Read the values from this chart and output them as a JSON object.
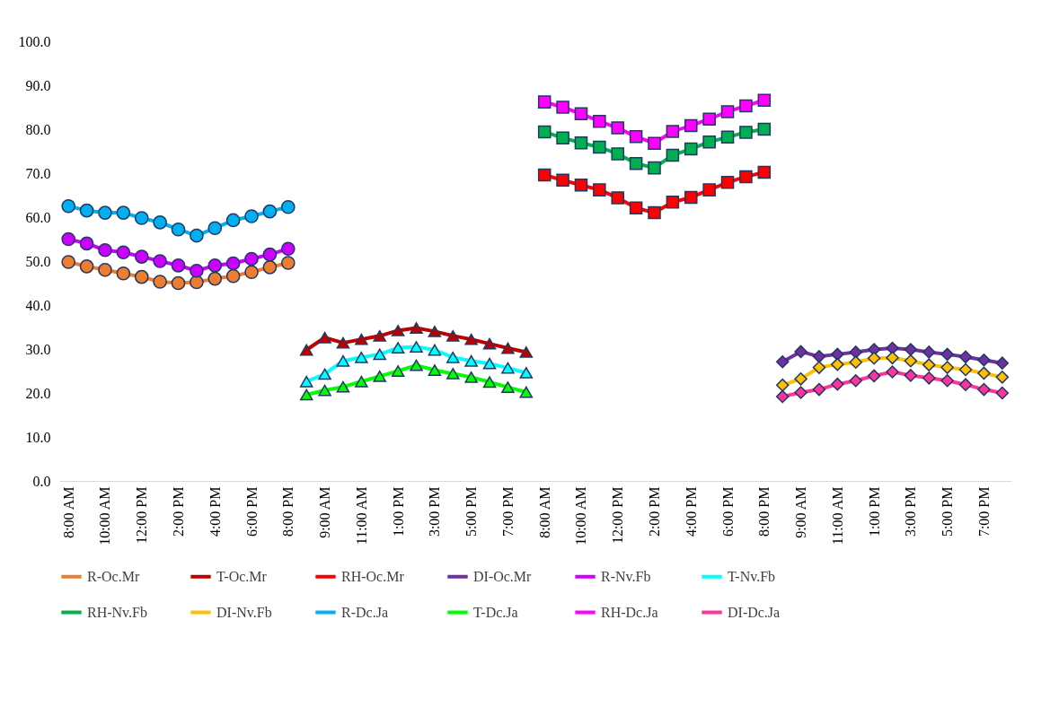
{
  "chart_data": {
    "type": "line",
    "categories": [
      "8:00 AM",
      null,
      "10:00 AM",
      null,
      "12:00 PM",
      null,
      "2:00 PM",
      null,
      "4:00 PM",
      null,
      "6:00 PM",
      null,
      "8:00 PM",
      null,
      "9:00 AM",
      null,
      "11:00 AM",
      null,
      "1:00 PM",
      null,
      "3:00 PM",
      null,
      "5:00 PM",
      null,
      "7:00 PM",
      null,
      "8:00 AM",
      null,
      "10:00 AM",
      null,
      "12:00 PM",
      null,
      "2:00 PM",
      null,
      "4:00 PM",
      null,
      "6:00 PM",
      null,
      "8:00 PM",
      null,
      "9:00 AM",
      null,
      "11:00 AM",
      null,
      "1:00 PM",
      null,
      "3:00 PM",
      null,
      "5:00 PM",
      null,
      "7:00 PM",
      null
    ],
    "ylim": [
      0,
      100
    ],
    "yticks": [
      {
        "value": 0,
        "label": "0.0"
      },
      {
        "value": 10,
        "label": "10.0"
      },
      {
        "value": 20,
        "label": "20.0"
      },
      {
        "value": 30,
        "label": "30.0"
      },
      {
        "value": 40,
        "label": "40.0"
      },
      {
        "value": 50,
        "label": "50.0"
      },
      {
        "value": 60,
        "label": "60.0"
      },
      {
        "value": 70,
        "label": "70.0"
      },
      {
        "value": 80,
        "label": "80.0"
      },
      {
        "value": 90,
        "label": "90.0"
      },
      {
        "value": 100,
        "label": "100.0"
      }
    ],
    "grid": false,
    "legend": "bottom",
    "series": [
      {
        "name": "R-Oc.Mr",
        "color": "#ed7d31",
        "marker": "circle",
        "values": [
          49.8,
          48.8,
          48.0,
          47.2,
          46.4,
          45.3,
          45.0,
          45.2,
          46.0,
          46.6,
          47.5,
          48.6,
          49.6,
          null,
          null,
          null,
          null,
          null,
          null,
          null,
          null,
          null,
          null,
          null,
          null,
          null,
          null,
          null,
          null,
          null,
          null,
          null,
          null,
          null,
          null,
          null,
          null,
          null,
          null,
          null,
          null,
          null,
          null,
          null,
          null,
          null,
          null,
          null,
          null,
          null,
          null,
          null
        ]
      },
      {
        "name": "T-Oc.Mr",
        "color": "#c00000",
        "marker": "triangle",
        "values": [
          null,
          null,
          null,
          null,
          null,
          null,
          null,
          null,
          null,
          null,
          null,
          null,
          null,
          29.8,
          32.6,
          31.4,
          32.2,
          33.0,
          34.2,
          34.8,
          34.0,
          33.0,
          32.2,
          31.2,
          30.2,
          29.3,
          null,
          null,
          null,
          null,
          null,
          null,
          null,
          null,
          null,
          null,
          null,
          null,
          null,
          null,
          null,
          null,
          null,
          null,
          null,
          null,
          null,
          null,
          null,
          null,
          null,
          null
        ]
      },
      {
        "name": "RH-Oc.Mr",
        "color": "#ff0000",
        "marker": "square",
        "values": [
          null,
          null,
          null,
          null,
          null,
          null,
          null,
          null,
          null,
          null,
          null,
          null,
          null,
          null,
          null,
          null,
          null,
          null,
          null,
          null,
          null,
          null,
          null,
          null,
          null,
          null,
          69.6,
          68.4,
          67.3,
          66.2,
          64.4,
          62.1,
          61.0,
          63.4,
          64.5,
          66.2,
          67.9,
          69.2,
          70.2,
          null,
          null,
          null,
          null,
          null,
          null,
          null,
          null,
          null,
          null,
          null,
          null,
          null
        ]
      },
      {
        "name": "DI-Oc.Mr",
        "color": "#7030a0",
        "marker": "diamond",
        "values": [
          null,
          null,
          null,
          null,
          null,
          null,
          null,
          null,
          null,
          null,
          null,
          null,
          null,
          null,
          null,
          null,
          null,
          null,
          null,
          null,
          null,
          null,
          null,
          null,
          null,
          null,
          null,
          null,
          null,
          null,
          null,
          null,
          null,
          null,
          null,
          null,
          null,
          null,
          null,
          27.1,
          29.4,
          28.3,
          28.8,
          29.3,
          29.9,
          30.2,
          29.9,
          29.3,
          28.8,
          28.2,
          27.5,
          26.8
        ]
      },
      {
        "name": "R-Nv.Fb",
        "color": "#cc00ff",
        "marker": "circle",
        "values": [
          55.0,
          54.0,
          52.5,
          52.0,
          51.0,
          50.0,
          49.0,
          47.8,
          49.0,
          49.5,
          50.5,
          51.5,
          52.8,
          null,
          null,
          null,
          null,
          null,
          null,
          null,
          null,
          null,
          null,
          null,
          null,
          null,
          null,
          null,
          null,
          null,
          null,
          null,
          null,
          null,
          null,
          null,
          null,
          null,
          null,
          null,
          null,
          null,
          null,
          null,
          null,
          null,
          null,
          null,
          null,
          null,
          null,
          null
        ]
      },
      {
        "name": "T-Nv.Fb",
        "color": "#00ffff",
        "marker": "triangle",
        "values": [
          null,
          null,
          null,
          null,
          null,
          null,
          null,
          null,
          null,
          null,
          null,
          null,
          null,
          22.6,
          24.3,
          27.3,
          28.1,
          28.8,
          30.3,
          30.5,
          29.8,
          28.1,
          27.3,
          26.7,
          25.7,
          24.6,
          null,
          null,
          null,
          null,
          null,
          null,
          null,
          null,
          null,
          null,
          null,
          null,
          null,
          null,
          null,
          null,
          null,
          null,
          null,
          null,
          null,
          null,
          null,
          null,
          null,
          null
        ]
      },
      {
        "name": "RH-Nv.Fb",
        "color": "#00b050",
        "marker": "square",
        "values": [
          null,
          null,
          null,
          null,
          null,
          null,
          null,
          null,
          null,
          null,
          null,
          null,
          null,
          null,
          null,
          null,
          null,
          null,
          null,
          null,
          null,
          null,
          null,
          null,
          null,
          null,
          79.4,
          78.0,
          76.9,
          75.9,
          74.4,
          72.2,
          71.2,
          74.1,
          75.5,
          77.1,
          78.2,
          79.3,
          80.0,
          null,
          null,
          null,
          null,
          null,
          null,
          null,
          null,
          null,
          null,
          null,
          null,
          null
        ]
      },
      {
        "name": "DI-Nv.Fb",
        "color": "#ffc000",
        "marker": "diamond",
        "values": [
          null,
          null,
          null,
          null,
          null,
          null,
          null,
          null,
          null,
          null,
          null,
          null,
          null,
          null,
          null,
          null,
          null,
          null,
          null,
          null,
          null,
          null,
          null,
          null,
          null,
          null,
          null,
          null,
          null,
          null,
          null,
          null,
          null,
          null,
          null,
          null,
          null,
          null,
          null,
          21.8,
          23.2,
          25.8,
          26.5,
          27.0,
          27.9,
          28.0,
          27.3,
          26.4,
          25.8,
          25.3,
          24.5,
          23.6
        ]
      },
      {
        "name": "R-Dc.Ja",
        "color": "#00b0f0",
        "marker": "circle",
        "values": [
          62.5,
          61.5,
          61.0,
          61.0,
          59.8,
          58.8,
          57.2,
          55.8,
          57.5,
          59.3,
          60.2,
          61.3,
          62.3,
          null,
          null,
          null,
          null,
          null,
          null,
          null,
          null,
          null,
          null,
          null,
          null,
          null,
          null,
          null,
          null,
          null,
          null,
          null,
          null,
          null,
          null,
          null,
          null,
          null,
          null,
          null,
          null,
          null,
          null,
          null,
          null,
          null,
          null,
          null,
          null,
          null,
          null,
          null
        ]
      },
      {
        "name": "T-Dc.Ja",
        "color": "#00ff00",
        "marker": "triangle",
        "values": [
          null,
          null,
          null,
          null,
          null,
          null,
          null,
          null,
          null,
          null,
          null,
          null,
          null,
          19.6,
          20.6,
          21.4,
          22.6,
          23.8,
          25.0,
          26.3,
          25.2,
          24.4,
          23.6,
          22.5,
          21.3,
          20.2,
          null,
          null,
          null,
          null,
          null,
          null,
          null,
          null,
          null,
          null,
          null,
          null,
          null,
          null,
          null,
          null,
          null,
          null,
          null,
          null,
          null,
          null,
          null,
          null,
          null,
          null
        ]
      },
      {
        "name": "RH-Dc.Ja",
        "color": "#ff00ff",
        "marker": "square",
        "values": [
          null,
          null,
          null,
          null,
          null,
          null,
          null,
          null,
          null,
          null,
          null,
          null,
          null,
          null,
          null,
          null,
          null,
          null,
          null,
          null,
          null,
          null,
          null,
          null,
          null,
          null,
          86.2,
          85.0,
          83.5,
          81.8,
          80.3,
          78.3,
          76.8,
          79.5,
          80.8,
          82.3,
          84.0,
          85.3,
          86.6,
          null,
          null,
          null,
          null,
          null,
          null,
          null,
          null,
          null,
          null,
          null,
          null,
          null
        ]
      },
      {
        "name": "DI-Dc.Ja",
        "color": "#ff3399",
        "marker": "diamond",
        "values": [
          null,
          null,
          null,
          null,
          null,
          null,
          null,
          null,
          null,
          null,
          null,
          null,
          null,
          null,
          null,
          null,
          null,
          null,
          null,
          null,
          null,
          null,
          null,
          null,
          null,
          null,
          null,
          null,
          null,
          null,
          null,
          null,
          null,
          null,
          null,
          null,
          null,
          null,
          null,
          19.2,
          20.1,
          20.8,
          22.0,
          22.8,
          23.9,
          24.8,
          24.0,
          23.4,
          22.8,
          21.9,
          20.8,
          20.0
        ]
      }
    ]
  }
}
